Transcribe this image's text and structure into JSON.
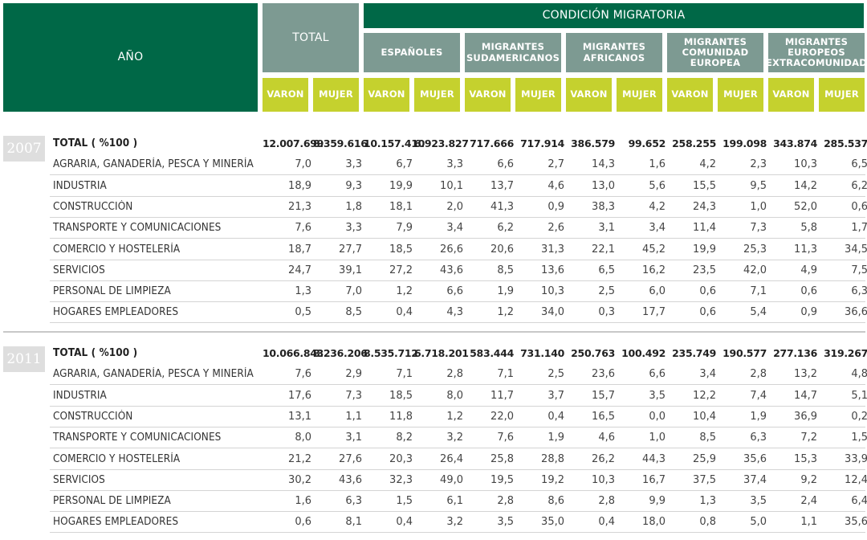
{
  "header": {
    "anio": "AÑO",
    "total": "TOTAL",
    "condicion": "CONDICIÓN MIGRATORIA",
    "groups": [
      "ESPAÑOLES",
      "MIGRANTES\nSUDAMERICANOS",
      "MIGRANTES\nAFRICANOS",
      "MIGRANTES\nCOMUNIDAD EUROPEA",
      "MIGRANTES EUROPEOS\nEXTRACOMUNIDAD"
    ],
    "varon": "VARON",
    "mujer": "MUJER"
  },
  "colors": {
    "dark_green": "#006847",
    "gray_green": "#7d9a92",
    "lime": "#c5d12e",
    "year_badge": "#dedede"
  },
  "sections": [
    {
      "year": "2007",
      "rows": [
        {
          "label": "TOTAL ( %100 )",
          "values": [
            "12.007.699",
            "8.359.616",
            "10.157.410",
            "6.923.827",
            "717.666",
            "717.914",
            "386.579",
            "99.652",
            "258.255",
            "199.098",
            "343.874",
            "285.537"
          ]
        },
        {
          "label": "AGRARIA, GANADERÍA, PESCA Y MINERÍA",
          "values": [
            "7,0",
            "3,3",
            "6,7",
            "3,3",
            "6,6",
            "2,7",
            "14,3",
            "1,6",
            "4,2",
            "2,3",
            "10,3",
            "6,5"
          ]
        },
        {
          "label": "INDUSTRIA",
          "values": [
            "18,9",
            "9,3",
            "19,9",
            "10,1",
            "13,7",
            "4,6",
            "13,0",
            "5,6",
            "15,5",
            "9,5",
            "14,2",
            "6,2"
          ]
        },
        {
          "label": "CONSTRUCCIÓN",
          "values": [
            "21,3",
            "1,8",
            "18,1",
            "2,0",
            "41,3",
            "0,9",
            "38,3",
            "4,2",
            "24,3",
            "1,0",
            "52,0",
            "0,6"
          ]
        },
        {
          "label": "TRANSPORTE Y COMUNICACIONES",
          "values": [
            "7,6",
            "3,3",
            "7,9",
            "3,4",
            "6,2",
            "2,6",
            "3,1",
            "3,4",
            "11,4",
            "7,3",
            "5,8",
            "1,7"
          ]
        },
        {
          "label": "COMERCIO  Y HOSTELERÍA",
          "values": [
            "18,7",
            "27,7",
            "18,5",
            "26,6",
            "20,6",
            "31,3",
            "22,1",
            "45,2",
            "19,9",
            "25,3",
            "11,3",
            "34,5"
          ]
        },
        {
          "label": "SERVICIOS",
          "values": [
            "24,7",
            "39,1",
            "27,2",
            "43,6",
            "8,5",
            "13,6",
            "6,5",
            "16,2",
            "23,5",
            "42,0",
            "4,9",
            "7,5"
          ]
        },
        {
          "label": "PERSONAL DE LIMPIEZA",
          "values": [
            "1,3",
            "7,0",
            "1,2",
            "6,6",
            "1,9",
            "10,3",
            "2,5",
            "6,0",
            "0,6",
            "7,1",
            "0,6",
            "6,3"
          ]
        },
        {
          "label": "HOGARES EMPLEADORES",
          "values": [
            "0,5",
            "8,5",
            "0,4",
            "4,3",
            "1,2",
            "34,0",
            "0,3",
            "17,7",
            "0,6",
            "5,4",
            "0,9",
            "36,6"
          ]
        }
      ]
    },
    {
      "year": "2011",
      "rows": [
        {
          "label": "TOTAL ( %100 )",
          "values": [
            "10.066.843",
            "8.236.206",
            "8.535.712",
            "6.718.201",
            "583.444",
            "731.140",
            "250.763",
            "100.492",
            "235.749",
            "190.577",
            "277.136",
            "319.267"
          ]
        },
        {
          "label": "AGRARIA, GANADERÍA, PESCA Y MINERÍA",
          "values": [
            "7,6",
            "2,9",
            "7,1",
            "2,8",
            "7,1",
            "2,5",
            "23,6",
            "6,6",
            "3,4",
            "2,8",
            "13,2",
            "4,8"
          ]
        },
        {
          "label": "INDUSTRIA",
          "values": [
            "17,6",
            "7,3",
            "18,5",
            "8,0",
            "11,7",
            "3,7",
            "15,7",
            "3,5",
            "12,2",
            "7,4",
            "14,7",
            "5,1"
          ]
        },
        {
          "label": "CONSTRUCCIÓN",
          "values": [
            "13,1",
            "1,1",
            "11,8",
            "1,2",
            "22,0",
            "0,4",
            "16,5",
            "0,0",
            "10,4",
            "1,9",
            "36,9",
            "0,2"
          ]
        },
        {
          "label": "TRANSPORTE Y COMUNICACIONES",
          "values": [
            "8,0",
            "3,1",
            "8,2",
            "3,2",
            "7,6",
            "1,9",
            "4,6",
            "1,0",
            "8,5",
            "6,3",
            "7,2",
            "1,5"
          ]
        },
        {
          "label": "COMERCIO  Y HOSTELERÍA",
          "values": [
            "21,2",
            "27,6",
            "20,3",
            "26,4",
            "25,8",
            "28,8",
            "26,2",
            "44,3",
            "25,9",
            "35,6",
            "15,3",
            "33,9"
          ]
        },
        {
          "label": "SERVICIOS",
          "values": [
            "30,2",
            "43,6",
            "32,3",
            "49,0",
            "19,5",
            "19,2",
            "10,3",
            "16,7",
            "37,5",
            "37,4",
            "9,2",
            "12,4"
          ]
        },
        {
          "label": "PERSONAL DE LIMPIEZA",
          "values": [
            "1,6",
            "6,3",
            "1,5",
            "6,1",
            "2,8",
            "8,6",
            "2,8",
            "9,9",
            "1,3",
            "3,5",
            "2,4",
            "6,4"
          ]
        },
        {
          "label": "HOGARES EMPLEADORES",
          "values": [
            "0,6",
            "8,1",
            "0,4",
            "3,2",
            "3,5",
            "35,0",
            "0,4",
            "18,0",
            "0,8",
            "5,0",
            "1,1",
            "35,6"
          ]
        }
      ]
    }
  ]
}
